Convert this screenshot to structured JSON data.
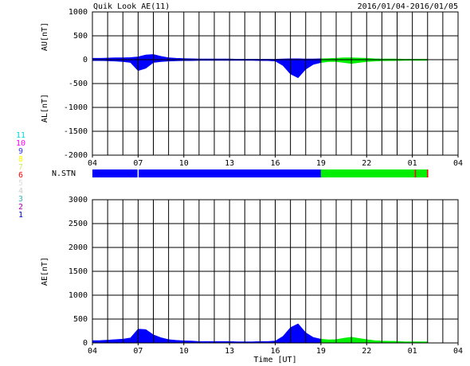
{
  "header": {
    "title": "Quik Look AE(11)",
    "date": "2016/01/04-2016/01/05"
  },
  "chart_data": [
    {
      "type": "area",
      "ylabel": "AU[nT]",
      "ylabel2": "AL[nT]",
      "xlim": [
        0,
        24
      ],
      "xticks": [
        {
          "value": 0,
          "label": "04"
        },
        {
          "value": 3,
          "label": "07"
        },
        {
          "value": 6,
          "label": "10"
        },
        {
          "value": 9,
          "label": "13"
        },
        {
          "value": 12,
          "label": "16"
        },
        {
          "value": 15,
          "label": "19"
        },
        {
          "value": 18,
          "label": "22"
        },
        {
          "value": 21,
          "label": "01"
        },
        {
          "value": 24,
          "label": "04"
        }
      ],
      "x_grid_every": 1,
      "ylim": [
        -2000,
        1000
      ],
      "yticks": [
        -2000,
        -1500,
        -1000,
        -500,
        0,
        500,
        1000
      ],
      "grid": true,
      "series": [
        {
          "color": "#0000ff",
          "x": [
            0,
            0.5,
            1,
            1.5,
            2,
            2.5,
            3,
            3.5,
            4,
            4.5,
            5,
            5.5,
            6,
            6.5,
            7,
            7.5,
            8,
            8.5,
            9,
            9.5,
            10,
            10.5,
            11,
            11.5,
            12,
            12.5,
            13,
            13.5,
            14,
            14.5,
            15
          ],
          "values": [
            30,
            30,
            35,
            40,
            40,
            45,
            60,
            100,
            110,
            70,
            40,
            30,
            25,
            20,
            15,
            15,
            15,
            15,
            15,
            10,
            10,
            10,
            10,
            10,
            10,
            15,
            20,
            20,
            15,
            15,
            20
          ]
        },
        {
          "color": "#0000ff",
          "x": [
            0,
            0.5,
            1,
            1.5,
            2,
            2.5,
            3,
            3.5,
            4,
            4.5,
            5,
            5.5,
            6,
            6.5,
            7,
            7.5,
            8,
            8.5,
            9,
            9.5,
            10,
            10.5,
            11,
            11.5,
            12,
            12.5,
            13,
            13.5,
            14,
            14.5,
            15
          ],
          "values": [
            -20,
            -20,
            -25,
            -30,
            -40,
            -60,
            -230,
            -180,
            -60,
            -40,
            -30,
            -25,
            -20,
            -20,
            -15,
            -15,
            -15,
            -15,
            -15,
            -15,
            -15,
            -15,
            -20,
            -20,
            -30,
            -120,
            -300,
            -380,
            -200,
            -100,
            -60
          ]
        },
        {
          "color": "#00ee00",
          "x": [
            15,
            15.5,
            16,
            16.5,
            17,
            17.5,
            18,
            18.5,
            19,
            19.5,
            20,
            20.5,
            21,
            21.5,
            22
          ],
          "values": [
            20,
            25,
            30,
            40,
            40,
            35,
            30,
            20,
            15,
            15,
            15,
            10,
            10,
            10,
            10
          ]
        },
        {
          "color": "#00ee00",
          "x": [
            15,
            15.5,
            16,
            16.5,
            17,
            17.5,
            18,
            18.5,
            19,
            19.5,
            20,
            20.5,
            21,
            21.5,
            22
          ],
          "values": [
            -60,
            -40,
            -40,
            -60,
            -80,
            -60,
            -40,
            -30,
            -25,
            -20,
            -20,
            -15,
            -15,
            -15,
            -15
          ]
        }
      ]
    },
    {
      "type": "area",
      "ylabel": "AE[nT]",
      "xlabel": "Time [UT]",
      "xlim": [
        0,
        24
      ],
      "xticks": [
        {
          "value": 0,
          "label": "04"
        },
        {
          "value": 3,
          "label": "07"
        },
        {
          "value": 6,
          "label": "10"
        },
        {
          "value": 9,
          "label": "13"
        },
        {
          "value": 12,
          "label": "16"
        },
        {
          "value": 15,
          "label": "19"
        },
        {
          "value": 18,
          "label": "22"
        },
        {
          "value": 21,
          "label": "01"
        },
        {
          "value": 24,
          "label": "04"
        }
      ],
      "x_grid_every": 1,
      "ylim": [
        0,
        3000
      ],
      "yticks": [
        0,
        500,
        1000,
        1500,
        2000,
        2500,
        3000
      ],
      "grid": true,
      "series": [
        {
          "color": "#0000ff",
          "x": [
            0,
            0.5,
            1,
            1.5,
            2,
            2.5,
            3,
            3.5,
            4,
            4.5,
            5,
            5.5,
            6,
            6.5,
            7,
            7.5,
            8,
            8.5,
            9,
            9.5,
            10,
            10.5,
            11,
            11.5,
            12,
            12.5,
            13,
            13.5,
            14,
            14.5,
            15
          ],
          "values": [
            50,
            50,
            60,
            70,
            80,
            105,
            290,
            280,
            170,
            110,
            70,
            55,
            45,
            40,
            30,
            30,
            30,
            30,
            30,
            25,
            25,
            25,
            30,
            30,
            40,
            135,
            320,
            400,
            215,
            115,
            80
          ]
        },
        {
          "color": "#00ee00",
          "x": [
            15,
            15.5,
            16,
            16.5,
            17,
            17.5,
            18,
            18.5,
            19,
            19.5,
            20,
            20.5,
            21,
            21.5,
            22
          ],
          "values": [
            80,
            65,
            70,
            100,
            120,
            95,
            70,
            50,
            40,
            35,
            35,
            25,
            25,
            25,
            25
          ]
        }
      ]
    }
  ],
  "nstn": {
    "label": "N.STN",
    "segments": [
      {
        "start": 0,
        "end": 15,
        "color": "#0000ff"
      },
      {
        "start": 15,
        "end": 22,
        "color": "#00ee00"
      }
    ],
    "marks": [
      {
        "x": 3,
        "color": "#ffffff"
      },
      {
        "x": 21.2,
        "color": "#ff0000"
      },
      {
        "x": 22,
        "color": "#ff0000"
      }
    ]
  },
  "station_legend": [
    {
      "label": "11",
      "color": "#00dddd"
    },
    {
      "label": "10",
      "color": "#ff00ff"
    },
    {
      "label": "9",
      "color": "#3333ff"
    },
    {
      "label": "8",
      "color": "#ffff00"
    },
    {
      "label": "7",
      "color": "#ccee66"
    },
    {
      "label": "6",
      "color": "#ff0000"
    },
    {
      "label": "5",
      "color": "#dddddd"
    },
    {
      "label": "4",
      "color": "#cccccc"
    },
    {
      "label": "3",
      "color": "#33bbbb"
    },
    {
      "label": "2",
      "color": "#aa00aa"
    },
    {
      "label": "1",
      "color": "#0000cc"
    }
  ]
}
